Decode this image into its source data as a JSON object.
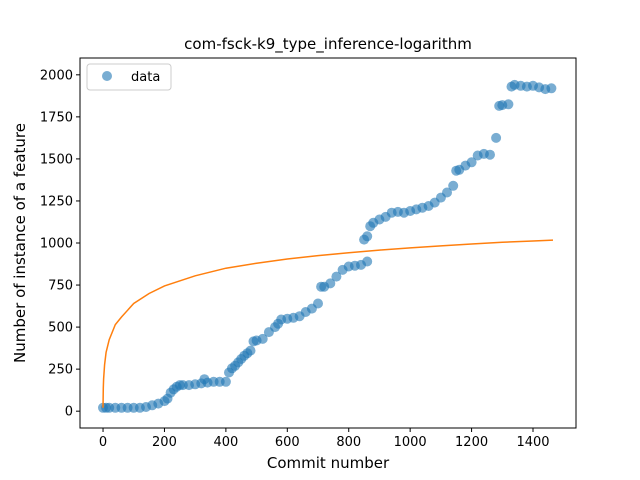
{
  "chart_data": {
    "type": "scatter",
    "title": "com-fsck-k9_type_inference-logarithm",
    "xlabel": "Commit number",
    "ylabel": "Number of instance of a feature",
    "xlim": [
      -75,
      1540
    ],
    "ylim": [
      -100,
      2100
    ],
    "xticks": [
      0,
      200,
      400,
      600,
      800,
      1000,
      1200,
      1400
    ],
    "yticks": [
      0,
      250,
      500,
      750,
      1000,
      1250,
      1500,
      1750,
      2000
    ],
    "grid": false,
    "legend": {
      "position": "top-left",
      "entries": [
        "data"
      ]
    },
    "colors": {
      "data": "#1f77b4",
      "fit": "#ff7f0e"
    },
    "series": [
      {
        "name": "data",
        "kind": "scatter",
        "x": [
          0,
          10,
          20,
          40,
          60,
          80,
          100,
          120,
          140,
          160,
          180,
          200,
          210,
          220,
          230,
          240,
          250,
          260,
          280,
          300,
          320,
          330,
          340,
          360,
          380,
          400,
          410,
          420,
          430,
          440,
          450,
          460,
          470,
          480,
          490,
          500,
          520,
          540,
          560,
          570,
          580,
          600,
          620,
          640,
          660,
          680,
          700,
          710,
          720,
          740,
          760,
          780,
          800,
          820,
          840,
          860,
          850,
          860,
          870,
          880,
          900,
          920,
          940,
          960,
          980,
          1000,
          1020,
          1040,
          1060,
          1080,
          1100,
          1120,
          1140,
          1150,
          1160,
          1180,
          1200,
          1220,
          1240,
          1260,
          1280,
          1290,
          1300,
          1320,
          1330,
          1340,
          1360,
          1380,
          1400,
          1420,
          1440,
          1460
        ],
        "y": [
          20,
          20,
          20,
          20,
          20,
          20,
          20,
          20,
          25,
          35,
          45,
          60,
          75,
          110,
          130,
          145,
          155,
          155,
          155,
          160,
          165,
          190,
          170,
          175,
          175,
          175,
          230,
          255,
          270,
          290,
          310,
          330,
          345,
          360,
          415,
          420,
          430,
          470,
          500,
          520,
          545,
          550,
          555,
          565,
          590,
          610,
          640,
          740,
          740,
          760,
          800,
          840,
          860,
          865,
          870,
          890,
          1020,
          1040,
          1100,
          1120,
          1140,
          1155,
          1180,
          1185,
          1180,
          1190,
          1200,
          1210,
          1220,
          1240,
          1270,
          1300,
          1340,
          1430,
          1435,
          1460,
          1480,
          1520,
          1530,
          1525,
          1625,
          1815,
          1820,
          1825,
          1930,
          1940,
          1935,
          1930,
          1935,
          1925,
          1915,
          1920
        ]
      },
      {
        "name": "",
        "kind": "line",
        "x": [
          0,
          1,
          2,
          5,
          10,
          20,
          40,
          60,
          100,
          150,
          200,
          300,
          400,
          500,
          600,
          700,
          800,
          900,
          1000,
          1100,
          1200,
          1300,
          1400,
          1465
        ],
        "y": [
          20,
          138,
          190,
          277,
          350,
          425,
          515,
          560,
          640,
          700,
          745,
          805,
          850,
          880,
          905,
          925,
          942,
          958,
          971,
          983,
          994,
          1004,
          1012,
          1017
        ]
      }
    ]
  }
}
